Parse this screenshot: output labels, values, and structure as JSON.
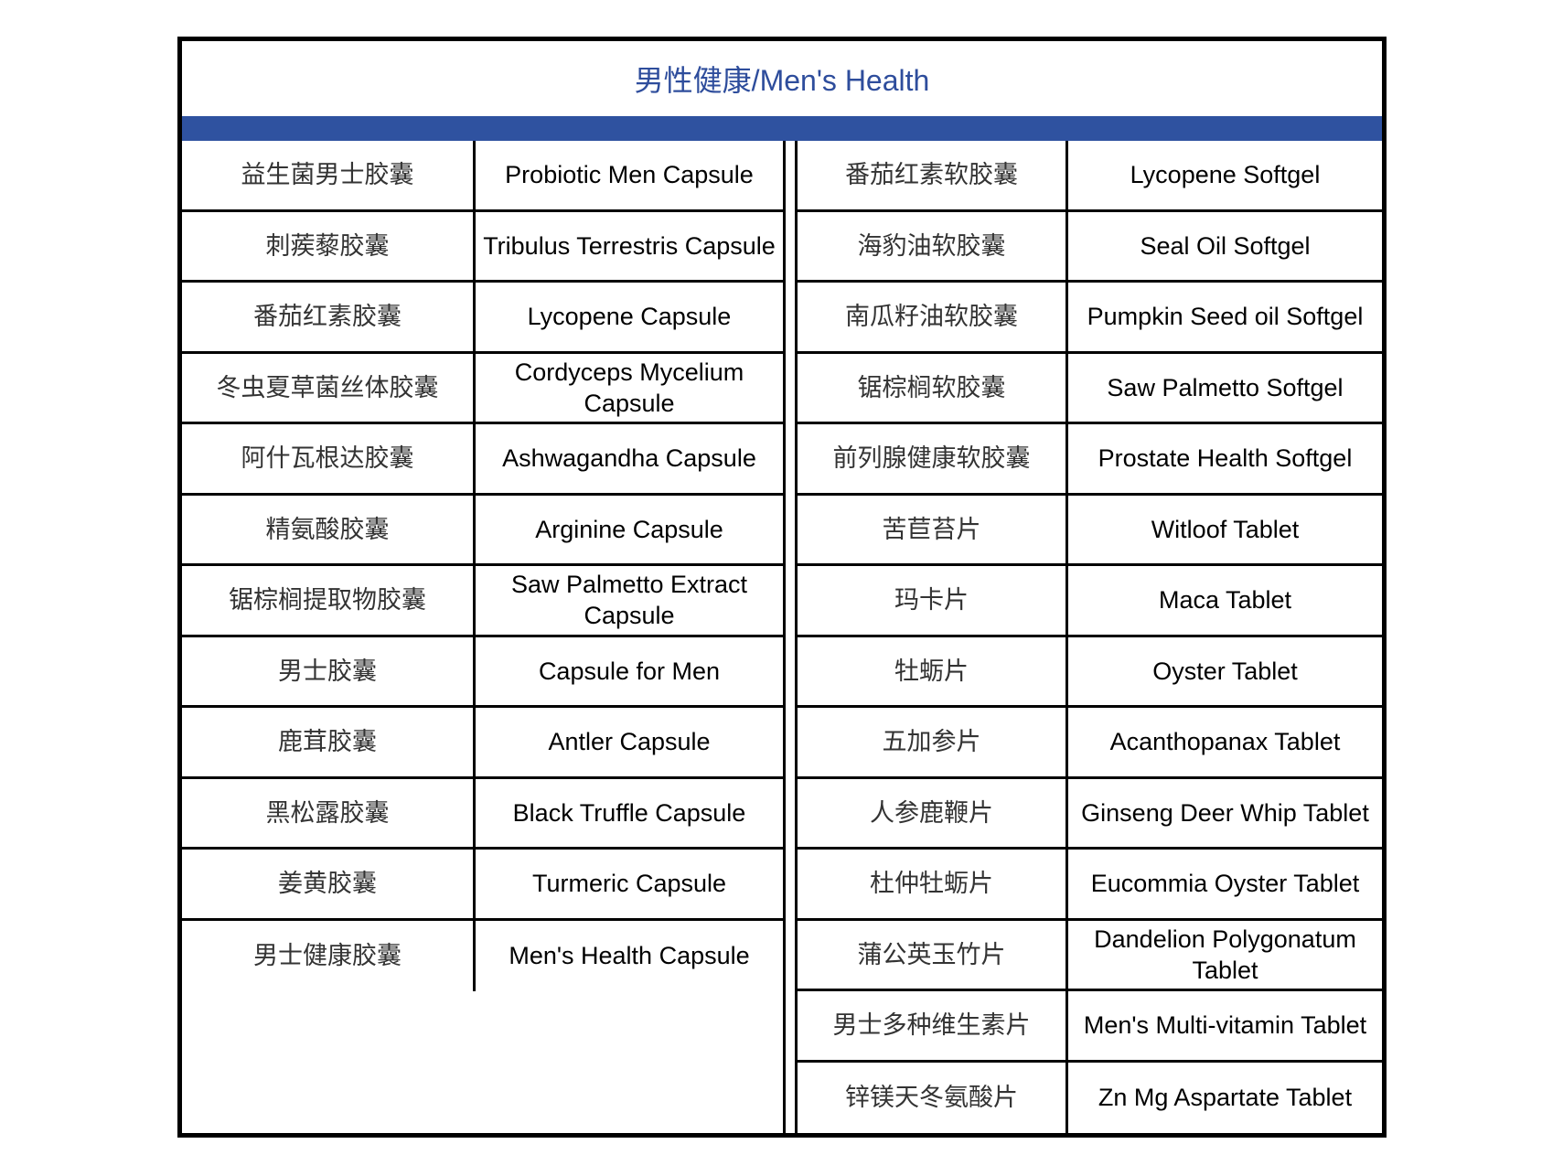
{
  "title": "男性健康/Men's Health",
  "colors": {
    "title_text": "#2e4d9c",
    "band": "#2f52a0",
    "border": "#000000"
  },
  "left": [
    {
      "cn": "益生菌男士胶囊",
      "en": "Probiotic Men Capsule"
    },
    {
      "cn": "刺蒺藜胶囊",
      "en": "Tribulus Terrestris Capsule"
    },
    {
      "cn": "番茄红素胶囊",
      "en": "Lycopene Capsule"
    },
    {
      "cn": "冬虫夏草菌丝体胶囊",
      "en": "Cordyceps Mycelium Capsule"
    },
    {
      "cn": "阿什瓦根达胶囊",
      "en": "Ashwagandha Capsule"
    },
    {
      "cn": "精氨酸胶囊",
      "en": "Arginine Capsule"
    },
    {
      "cn": "锯棕榈提取物胶囊",
      "en": "Saw Palmetto Extract Capsule"
    },
    {
      "cn": "男士胶囊",
      "en": "Capsule for Men"
    },
    {
      "cn": "鹿茸胶囊",
      "en": "Antler Capsule"
    },
    {
      "cn": "黑松露胶囊",
      "en": "Black Truffle Capsule"
    },
    {
      "cn": "姜黄胶囊",
      "en": "Turmeric Capsule"
    },
    {
      "cn": "男士健康胶囊",
      "en": "Men's Health Capsule"
    }
  ],
  "right": [
    {
      "cn": "番茄红素软胶囊",
      "en": "Lycopene Softgel"
    },
    {
      "cn": "海豹油软胶囊",
      "en": "Seal Oil Softgel"
    },
    {
      "cn": "南瓜籽油软胶囊",
      "en": "Pumpkin Seed oil Softgel"
    },
    {
      "cn": "锯棕榈软胶囊",
      "en": "Saw Palmetto Softgel"
    },
    {
      "cn": "前列腺健康软胶囊",
      "en": "Prostate Health Softgel"
    },
    {
      "cn": "苦苣苔片",
      "en": "Witloof Tablet"
    },
    {
      "cn": "玛卡片",
      "en": "Maca Tablet"
    },
    {
      "cn": "牡蛎片",
      "en": "Oyster Tablet"
    },
    {
      "cn": "五加参片",
      "en": "Acanthopanax Tablet"
    },
    {
      "cn": "人参鹿鞭片",
      "en": "Ginseng Deer Whip Tablet"
    },
    {
      "cn": "杜仲牡蛎片",
      "en": "Eucommia Oyster Tablet"
    },
    {
      "cn": "蒲公英玉竹片",
      "en": "Dandelion Polygonatum Tablet"
    },
    {
      "cn": "男士多种维生素片",
      "en": "Men's Multi-vitamin Tablet"
    },
    {
      "cn": "锌镁天冬氨酸片",
      "en": "Zn Mg Aspartate Tablet"
    }
  ]
}
